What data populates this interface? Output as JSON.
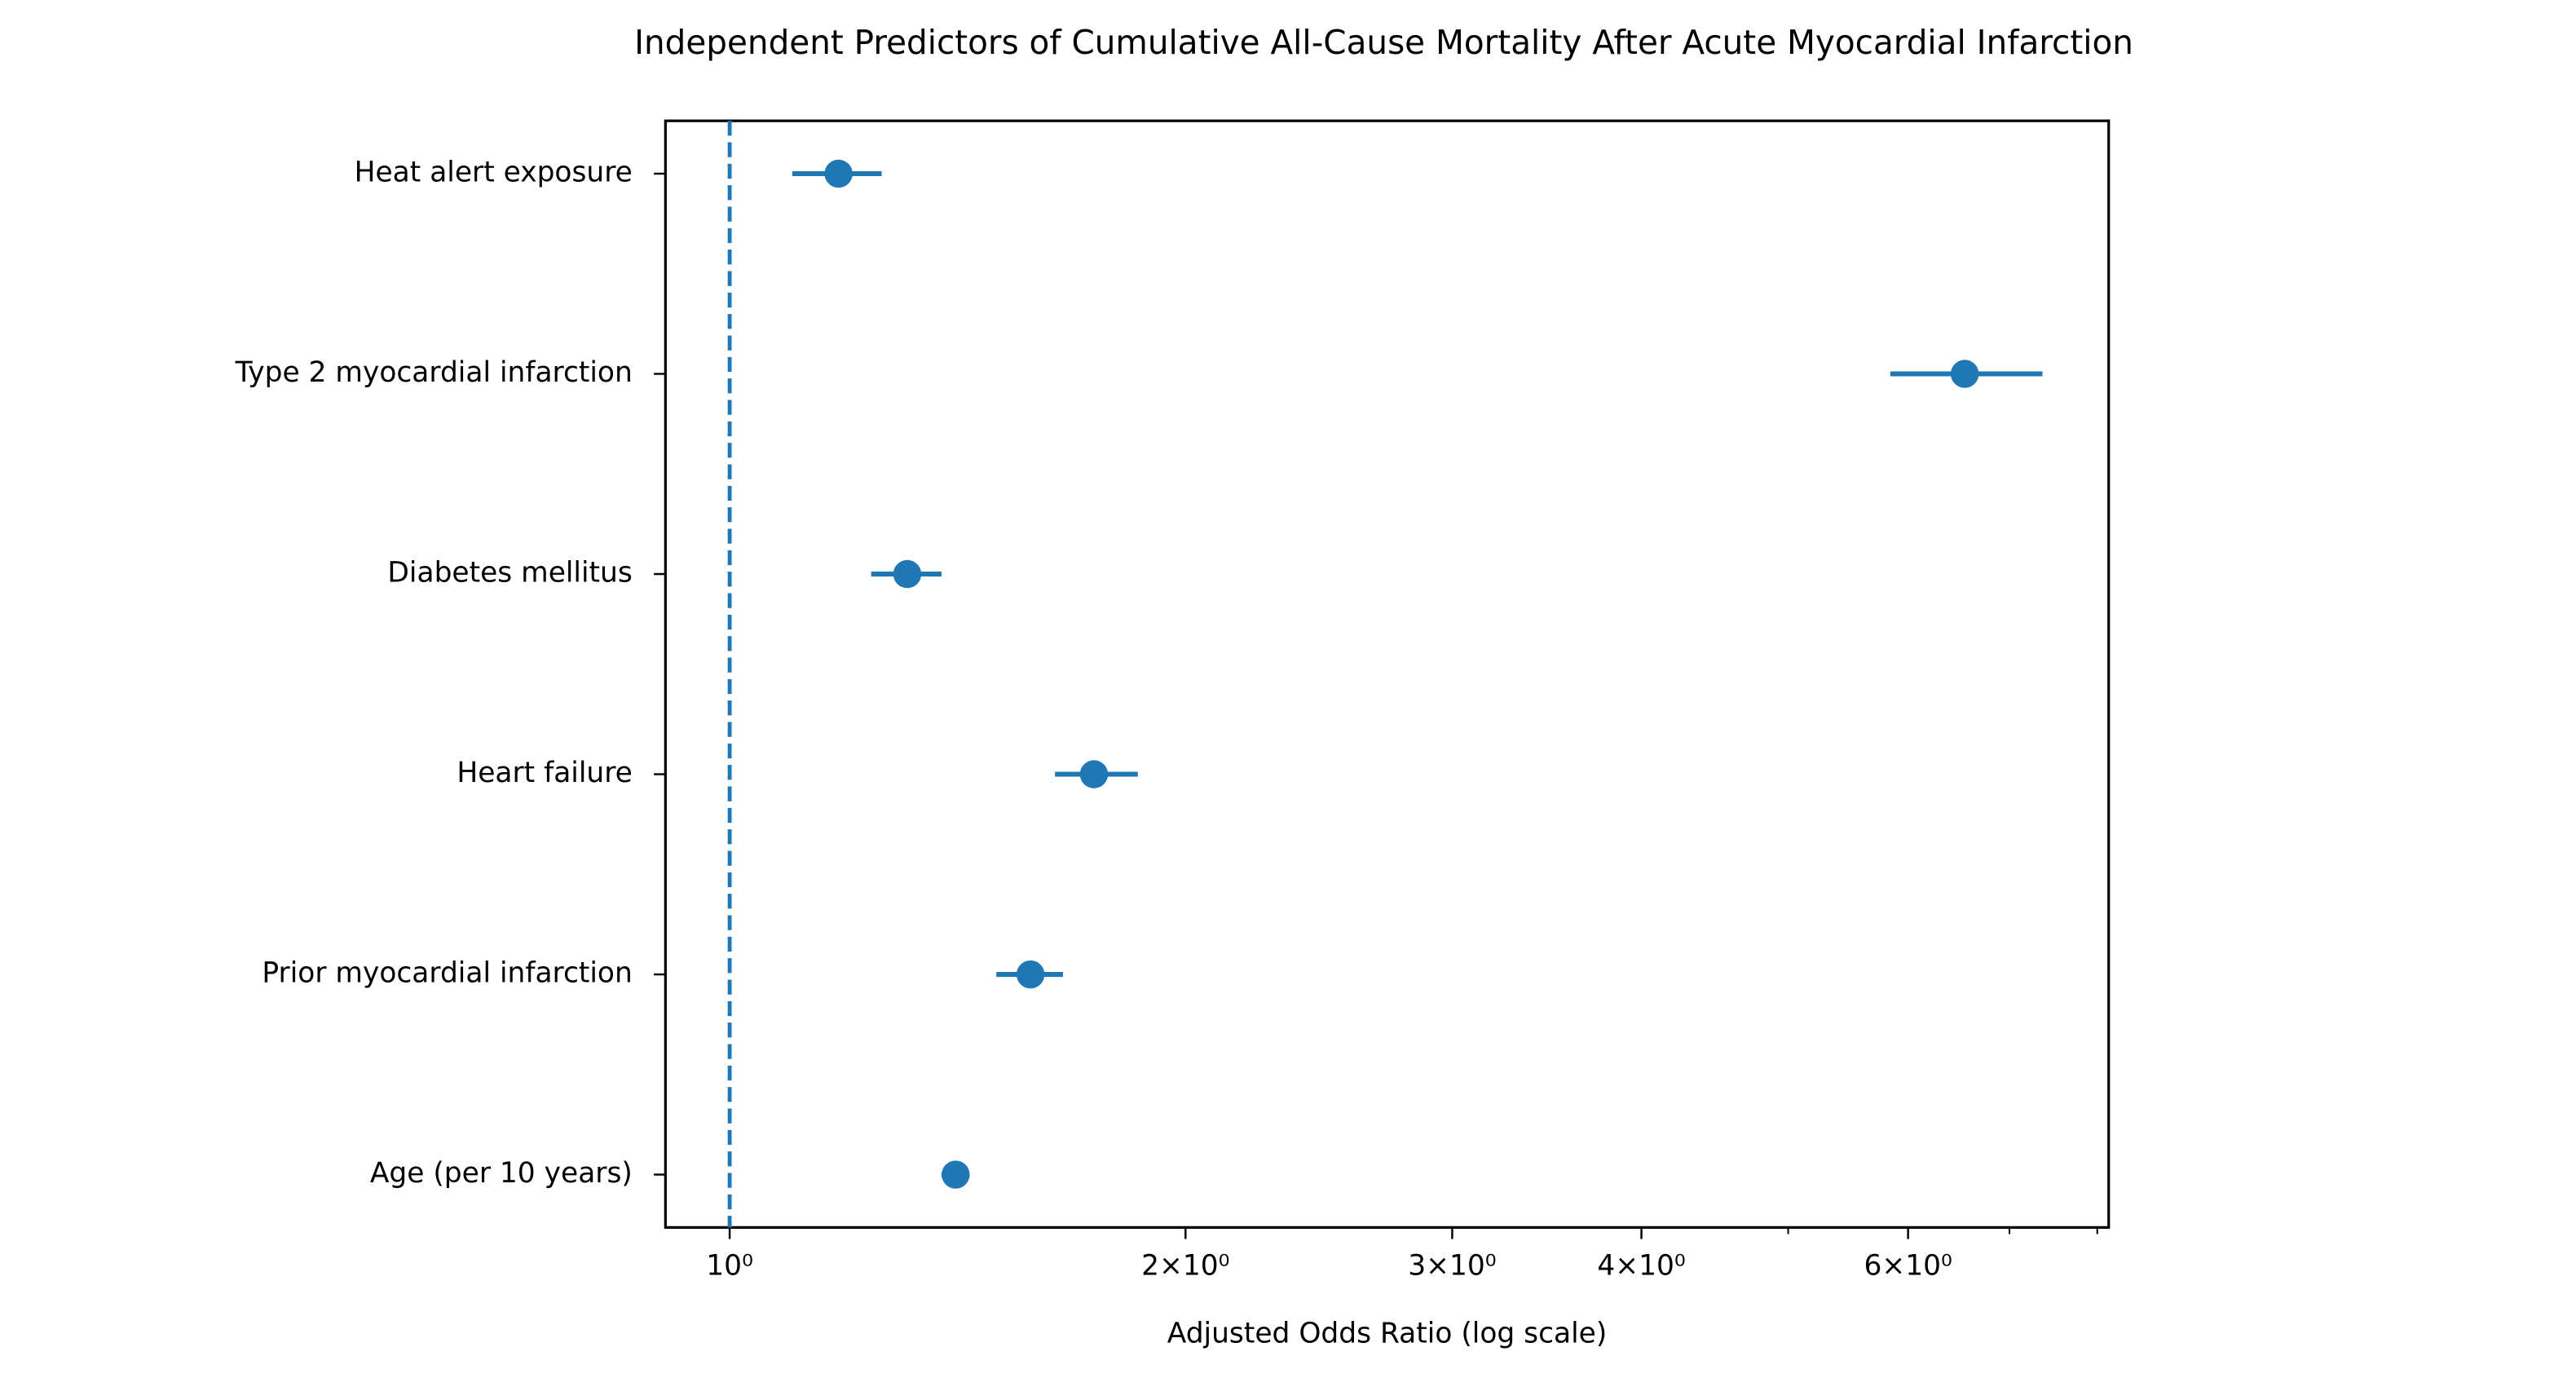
{
  "chart_data": {
    "type": "forest",
    "title": "Independent Predictors of Cumulative All-Cause Mortality After Acute Myocardial Infarction",
    "x_label": "Adjusted Odds Ratio (log scale)",
    "x_scale": "log",
    "categories": [
      "Heat alert exposure",
      "Type 2 myocardial infarction",
      "Diabetes mellitus",
      "Heart failure",
      "Prior myocardial infarction",
      "Age (per 10 years)"
    ],
    "series": [
      {
        "color": "#1f77b4",
        "values": [
          1.18,
          6.54,
          1.31,
          1.74,
          1.58,
          1.41
        ],
        "ci_lower": [
          1.1,
          5.84,
          1.24,
          1.64,
          1.5,
          1.38
        ],
        "ci_upper": [
          1.26,
          7.36,
          1.38,
          1.86,
          1.66,
          1.44
        ]
      }
    ],
    "xlim": [
      0.907,
      8.14
    ],
    "xticks": [
      {
        "value": 1,
        "label": "10⁰"
      },
      {
        "value": 2,
        "label": "2×10⁰"
      },
      {
        "value": 3,
        "label": "3×10⁰"
      },
      {
        "value": 4,
        "label": "4×10⁰"
      },
      {
        "value": 6,
        "label": "6×10⁰"
      }
    ],
    "xminorticks": [
      5,
      7,
      8
    ],
    "reference_line": 1
  }
}
